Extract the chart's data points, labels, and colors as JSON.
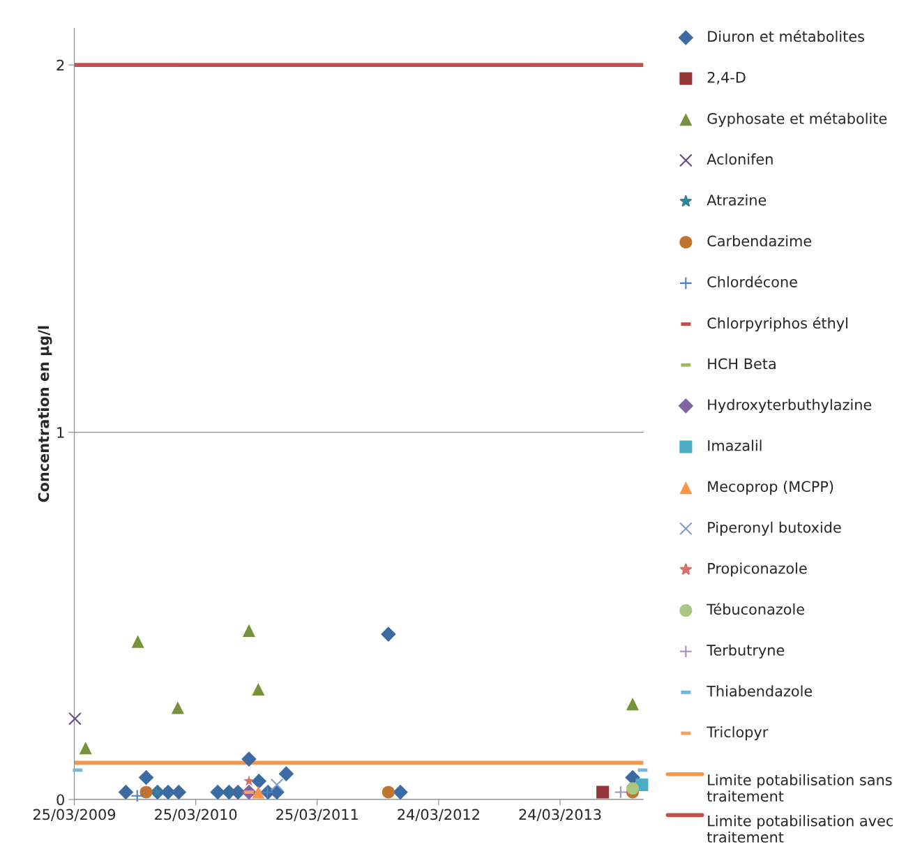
{
  "chart_data": {
    "type": "scatter",
    "ylabel": "Concentration en µg/l",
    "xlim": [
      "2009-03-25",
      "2013-11-29"
    ],
    "ylim": [
      0,
      2.1
    ],
    "yticks": [
      0,
      1,
      2
    ],
    "xticks": [
      {
        "value": "2009-03-25",
        "label": "25/03/2009"
      },
      {
        "value": "2010-03-25",
        "label": "25/03/2010"
      },
      {
        "value": "2011-03-25",
        "label": "25/03/2011"
      },
      {
        "value": "2012-03-24",
        "label": "24/03/2012"
      },
      {
        "value": "2013-03-24",
        "label": "24/03/2013"
      }
    ],
    "grid": "y",
    "legend": "right",
    "series": [
      {
        "name": "Diuron et métabolites",
        "color": "#3c6aa2",
        "marker": "diamond",
        "x": [
          "2009-08-27",
          "2009-10-27",
          "2009-11-30",
          "2010-01-01",
          "2010-02-02",
          "2010-05-30",
          "2010-07-03",
          "2010-07-30",
          "2010-09-01",
          "2010-10-01",
          "2010-10-28",
          "2010-11-24",
          "2010-12-22",
          "2011-10-25",
          "2011-11-30",
          "2013-10-28"
        ],
        "values": [
          0.02,
          0.06,
          0.02,
          0.02,
          0.02,
          0.02,
          0.02,
          0.02,
          0.11,
          0.05,
          0.02,
          0.02,
          0.07,
          0.45,
          0.02,
          0.06
        ]
      },
      {
        "name": "2,4-D",
        "color": "#953735",
        "marker": "square",
        "x": [
          "2013-07-30"
        ],
        "values": [
          0.02
        ]
      },
      {
        "name": "Gyphosate et métabolite",
        "color": "#76923c",
        "marker": "triangle",
        "x": [
          "2009-04-28",
          "2009-10-02",
          "2010-01-30",
          "2010-09-01",
          "2010-09-29",
          "2013-10-28"
        ],
        "values": [
          0.14,
          0.43,
          0.25,
          0.46,
          0.3,
          0.26
        ]
      },
      {
        "name": "Aclonifen",
        "color": "#604a7b",
        "marker": "cross",
        "x": [
          "2009-03-27"
        ],
        "values": [
          0.22
        ]
      },
      {
        "name": "Atrazine",
        "color": "#31859c",
        "marker": "star",
        "x": [
          "2009-11-28"
        ],
        "values": [
          0.02
        ]
      },
      {
        "name": "Carbendazime",
        "color": "#c07430",
        "marker": "circle",
        "x": [
          "2009-10-27",
          "2011-10-25",
          "2013-10-28"
        ],
        "values": [
          0.02,
          0.02,
          0.02
        ]
      },
      {
        "name": "Chlordécone",
        "color": "#4f81bd",
        "marker": "plus",
        "x": [
          "2009-09-30",
          "2010-10-26"
        ],
        "values": [
          0.01,
          0.02
        ]
      },
      {
        "name": "Chlorpyriphos éthyl",
        "color": "#c0504d",
        "marker": "square"
      },
      {
        "name": "HCH Beta",
        "color": "#9bbb59",
        "marker": "square"
      },
      {
        "name": "Hydroxyterbuthylazine",
        "color": "#8064a2",
        "marker": "diamond",
        "x": [
          "2010-09-01"
        ],
        "values": [
          0.02
        ]
      },
      {
        "name": "Imazalil",
        "color": "#4bacc6",
        "marker": "square",
        "x": [
          "2013-11-25"
        ],
        "values": [
          0.04
        ]
      },
      {
        "name": "Mecoprop (MCPP)",
        "color": "#f79646",
        "marker": "triangle",
        "x": [
          "2010-09-29"
        ],
        "values": [
          0.02
        ]
      },
      {
        "name": "Piperonyl butoxide",
        "color": "#7b9ad0",
        "marker": "cross",
        "x": [
          "2010-11-24"
        ],
        "values": [
          0.04
        ]
      },
      {
        "name": "Propiconazole",
        "color": "#d9706c",
        "marker": "star",
        "x": [
          "2010-09-01"
        ],
        "values": [
          0.05
        ]
      },
      {
        "name": "Tébuconazole",
        "color": "#a9c77e",
        "marker": "circle",
        "x": [
          "2013-10-28"
        ],
        "values": [
          0.03
        ]
      },
      {
        "name": "Terbutryne",
        "color": "#a18fc0",
        "marker": "plus",
        "x": [
          "2013-09-22"
        ],
        "values": [
          0.02
        ]
      },
      {
        "name": "Thiabendazole",
        "color": "#73b9d7",
        "marker": "square",
        "x": [
          "2009-04-04",
          "2013-11-27"
        ],
        "values": [
          0.08,
          0.08
        ]
      },
      {
        "name": "Triclopyr",
        "color": "#f9a05c",
        "marker": "square",
        "x": [
          "2010-09-01"
        ],
        "values": [
          0.02
        ]
      },
      {
        "name": "Limite potabilisation sans traitement",
        "type": "line",
        "color": "#f79646",
        "marker": "none",
        "x": [
          "2009-03-25",
          "2013-11-27"
        ],
        "values": [
          0.1,
          0.1
        ]
      },
      {
        "name": "Limite potabilisation avec traitement",
        "type": "line",
        "color": "#c0504d",
        "marker": "none",
        "x": [
          "2009-03-25",
          "2013-11-27"
        ],
        "values": [
          2,
          2
        ]
      }
    ]
  }
}
